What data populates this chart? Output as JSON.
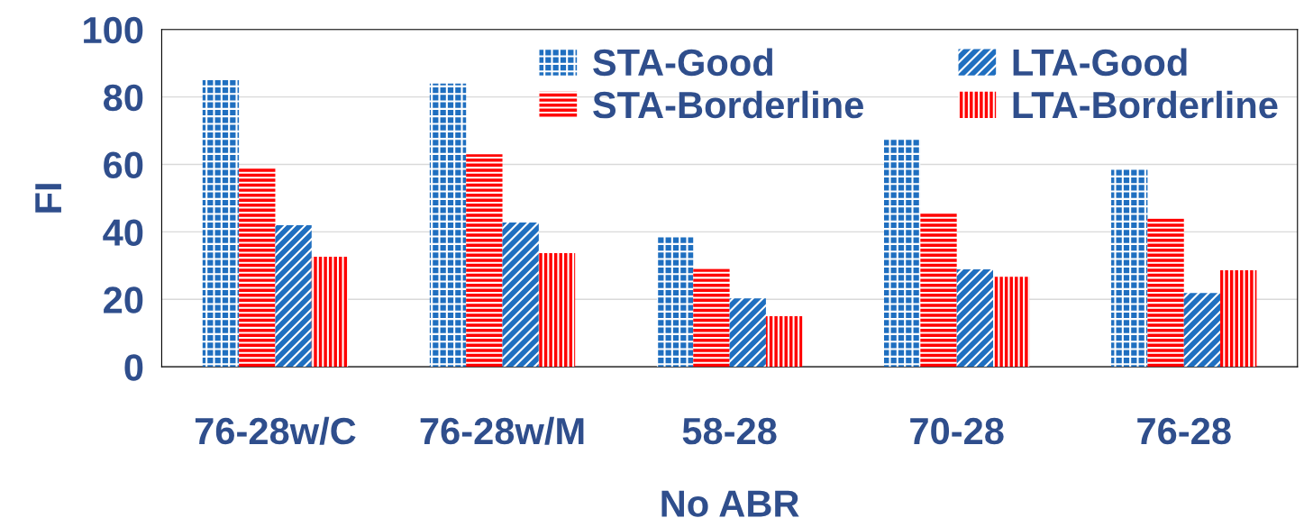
{
  "chart_data": {
    "type": "bar",
    "xlabel": "No ABR",
    "ylabel": "FI",
    "categories": [
      "76-28w/C",
      "76-28w/M",
      "58-28",
      "70-28",
      "76-28"
    ],
    "series": [
      {
        "name": "STA-Good",
        "color": "#1f6fc0",
        "values": [
          85,
          84,
          38.8,
          67.4,
          58.8
        ]
      },
      {
        "name": "STA-Borderline",
        "color": "#ff0000",
        "values": [
          59,
          63,
          29,
          46,
          44
        ]
      },
      {
        "name": "LTA-Good",
        "color": "#1f6fc0",
        "values": [
          42,
          42.8,
          20.3,
          28.9,
          21.9
        ]
      },
      {
        "name": "LTA-Borderline",
        "color": "#ff0000",
        "values": [
          32.6,
          33.7,
          15,
          26.7,
          28.6
        ]
      }
    ],
    "ylim": [
      0,
      100
    ],
    "yticks": [
      0,
      20,
      40,
      60,
      80,
      100
    ],
    "grid": "y",
    "legend": "top right"
  }
}
